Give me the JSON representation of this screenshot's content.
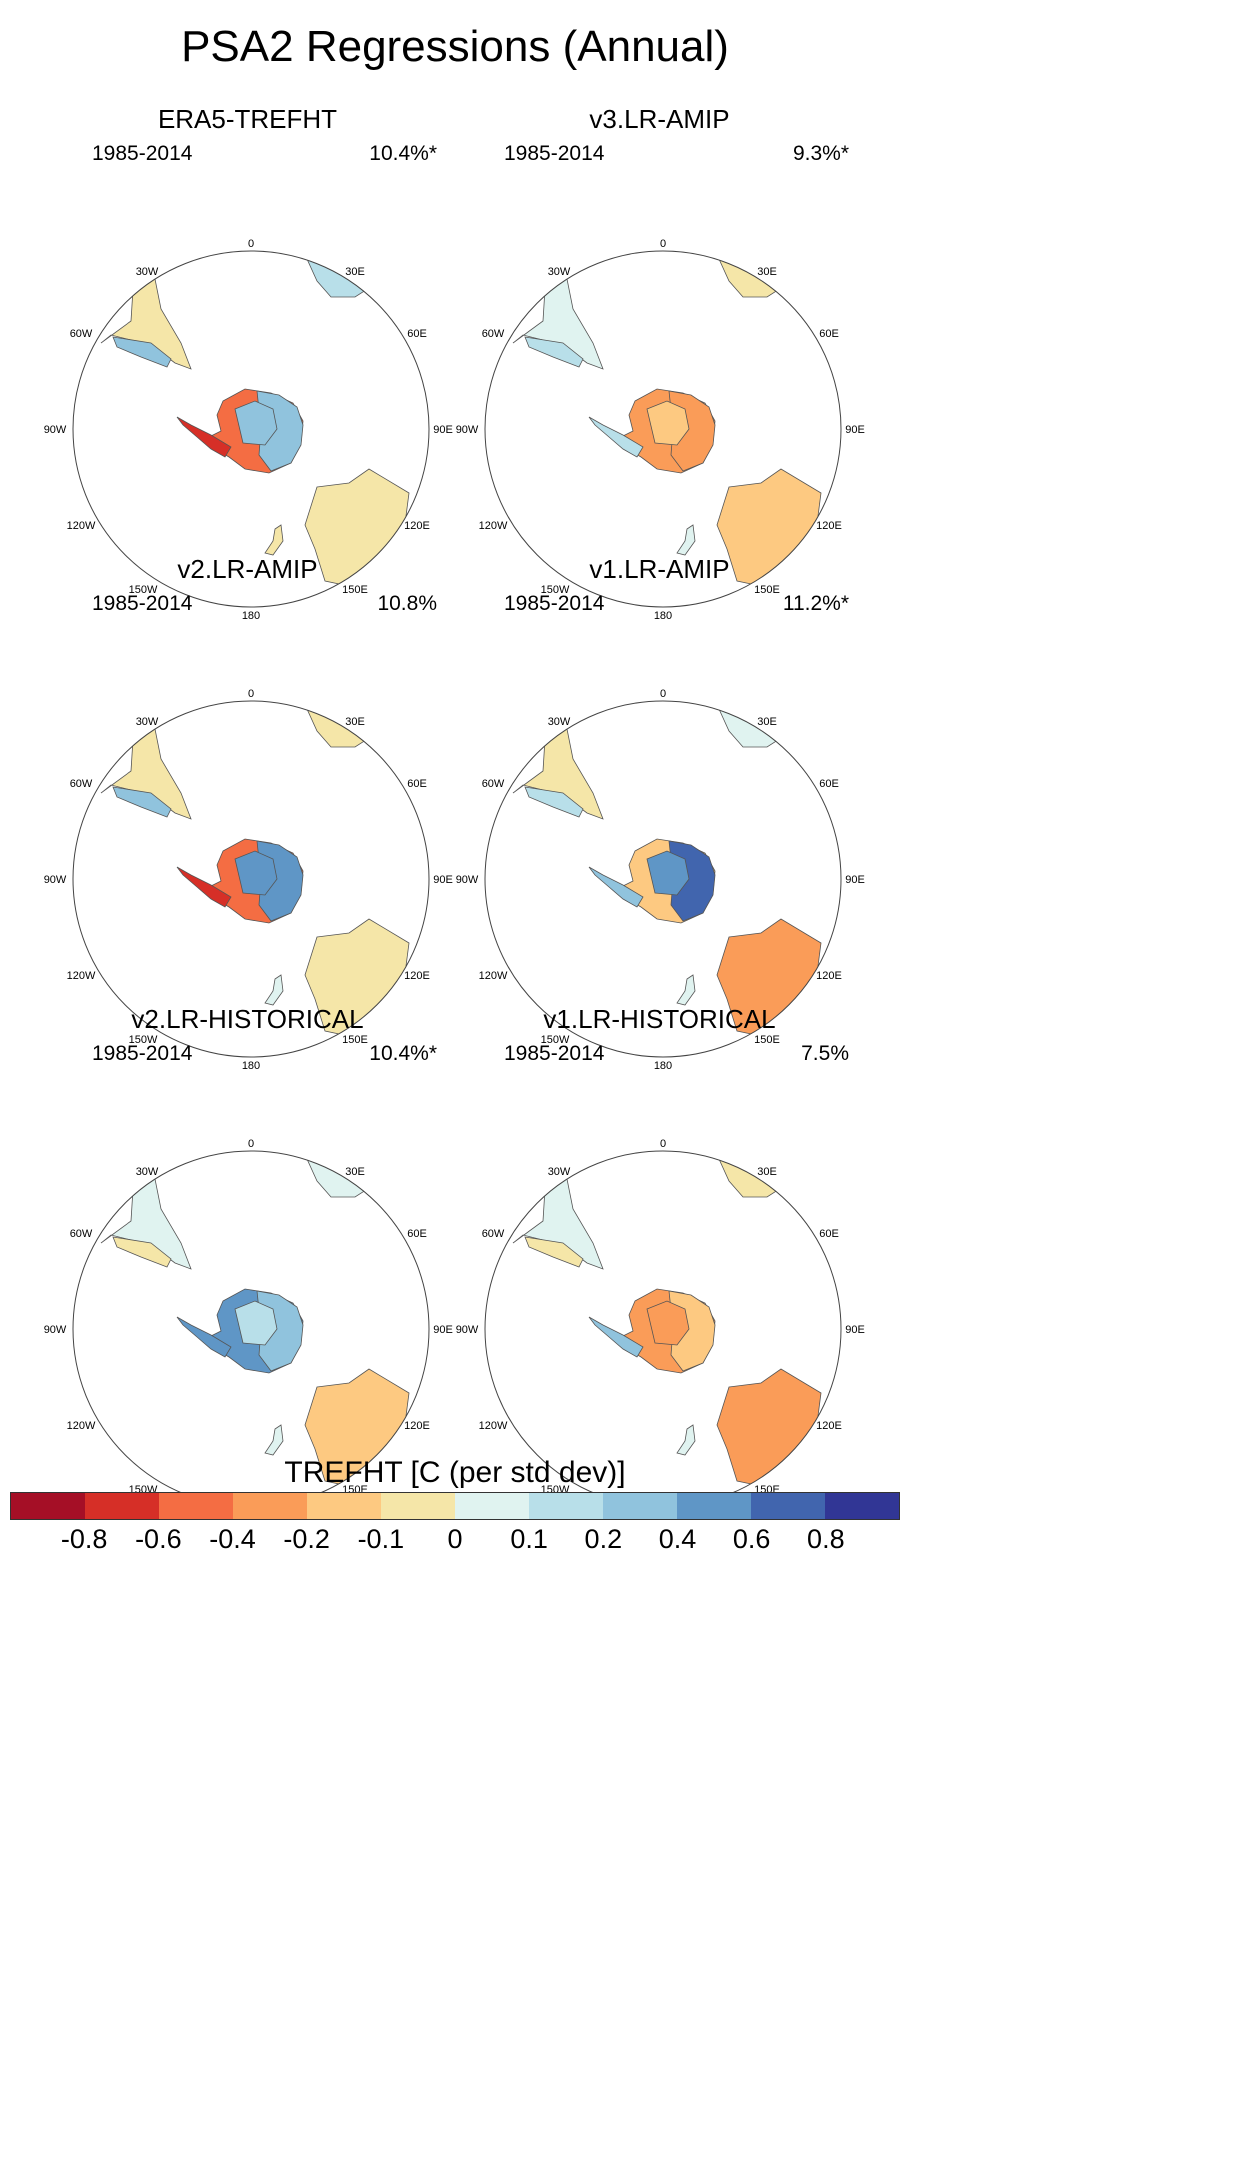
{
  "title": "PSA2 Regressions (Annual)",
  "panels": [
    {
      "title": "ERA5-TREFHT",
      "period": "1985-2014",
      "variance": "10.4%*",
      "antarctica": {
        "west": -0.5,
        "peninsula": -0.7,
        "east": 0.3,
        "interior": 0.2
      },
      "south_america": {
        "patagonia": 0.3,
        "north": -0.1
      },
      "africa": 0.1,
      "australia": -0.1,
      "nz": -0.1
    },
    {
      "title": "v3.LR-AMIP",
      "period": "1985-2014",
      "variance": "9.3%*",
      "antarctica": {
        "west": -0.4,
        "peninsula": 0.1,
        "east": -0.3,
        "interior": -0.2
      },
      "south_america": {
        "patagonia": 0.1,
        "north": 0.05
      },
      "africa": -0.1,
      "australia": -0.2,
      "nz": 0.05
    },
    {
      "title": "v2.LR-AMIP",
      "period": "1985-2014",
      "variance": "10.8%",
      "antarctica": {
        "west": -0.6,
        "peninsula": -0.7,
        "east": 0.5,
        "interior": 0.4
      },
      "south_america": {
        "patagonia": 0.2,
        "north": -0.1
      },
      "africa": -0.1,
      "australia": -0.1,
      "nz": 0.05
    },
    {
      "title": "v1.LR-AMIP",
      "period": "1985-2014",
      "variance": "11.2%*",
      "antarctica": {
        "west": -0.2,
        "peninsula": 0.3,
        "east": 0.6,
        "interior": 0.4
      },
      "south_america": {
        "patagonia": 0.1,
        "north": -0.1
      },
      "africa": 0.05,
      "australia": -0.3,
      "nz": 0.05
    },
    {
      "title": "v2.LR-HISTORICAL",
      "period": "1985-2014",
      "variance": "10.4%*",
      "antarctica": {
        "west": 0.4,
        "peninsula": 0.5,
        "east": 0.2,
        "interior": 0.15
      },
      "south_america": {
        "patagonia": -0.1,
        "north": 0.05
      },
      "africa": 0.05,
      "australia": -0.2,
      "nz": 0.05
    },
    {
      "title": "v1.LR-HISTORICAL",
      "period": "1985-2014",
      "variance": "7.5%",
      "antarctica": {
        "west": -0.3,
        "peninsula": 0.3,
        "east": -0.2,
        "interior": -0.3
      },
      "south_america": {
        "patagonia": -0.1,
        "north": 0.05
      },
      "africa": -0.1,
      "australia": -0.4,
      "nz": 0.05
    }
  ],
  "longitude_labels": [
    "0",
    "30E",
    "60E",
    "90E",
    "120E",
    "150E",
    "180",
    "150W",
    "120W",
    "90W",
    "60W",
    "30W"
  ],
  "colorbar": {
    "title": "TREFHT [C (per std dev)]",
    "colors": [
      "#a50f26",
      "#d62f27",
      "#f46d43",
      "#fa9c58",
      "#fdc981",
      "#f5e6a8",
      "#e0f3f0",
      "#b8dfe9",
      "#90c3dd",
      "#5f96c6",
      "#4165ae",
      "#313695"
    ],
    "labels": [
      "-0.8",
      "-0.6",
      "-0.4",
      "-0.2",
      "-0.1",
      "0",
      "0.1",
      "0.2",
      "0.4",
      "0.6",
      "0.8"
    ],
    "levels": [
      -0.8,
      -0.6,
      -0.4,
      -0.2,
      -0.1,
      0,
      0.1,
      0.2,
      0.4,
      0.6,
      0.8
    ]
  }
}
